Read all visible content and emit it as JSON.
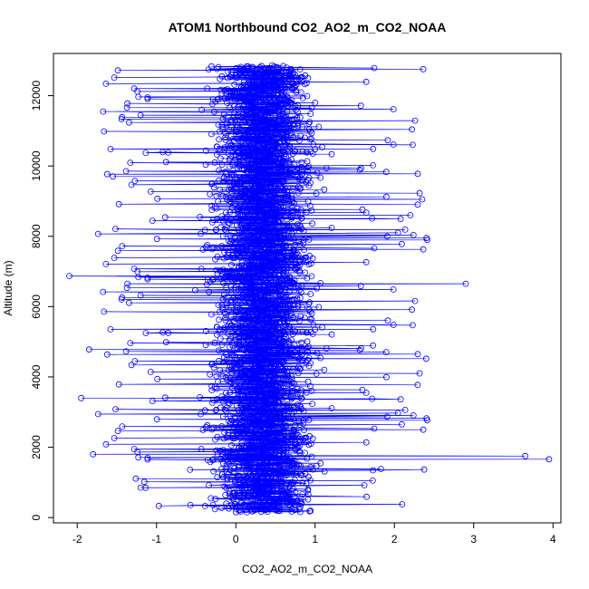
{
  "chart_data": {
    "type": "line",
    "title": "ATOM1 Northbound CO2_AO2_m_CO2_NOAA",
    "xlabel": "CO2_AO2_m_CO2_NOAA",
    "ylabel": "Altitude (m)",
    "xlim": [
      -2.3,
      4.1
    ],
    "ylim": [
      -150,
      13200
    ],
    "x_ticks": [
      -2,
      -1,
      0,
      1,
      2,
      3,
      4
    ],
    "x_tick_labels": [
      "-2",
      "-1",
      "0",
      "1",
      "2",
      "3",
      "4"
    ],
    "y_ticks": [
      0,
      2000,
      4000,
      6000,
      8000,
      10000,
      12000
    ],
    "y_tick_labels": [
      "0",
      "2000",
      "4000",
      "6000",
      "8000",
      "10000",
      "12000"
    ],
    "marker": "open-circle",
    "series_color": "#0000ff",
    "notable_points": [
      {
        "x": -2.1,
        "y": 6870
      },
      {
        "x": -1.85,
        "y": 4780
      },
      {
        "x": 2.9,
        "y": 6650
      },
      {
        "x": 3.95,
        "y": 1660
      },
      {
        "x": 3.65,
        "y": 1750
      },
      {
        "x": 2.4,
        "y": 4520
      },
      {
        "x": 2.2,
        "y": 8600
      },
      {
        "x": 2.35,
        "y": 9050
      },
      {
        "x": -1.95,
        "y": 3400
      },
      {
        "x": -1.8,
        "y": 1800
      },
      {
        "x": -1.55,
        "y": 9700
      }
    ]
  }
}
